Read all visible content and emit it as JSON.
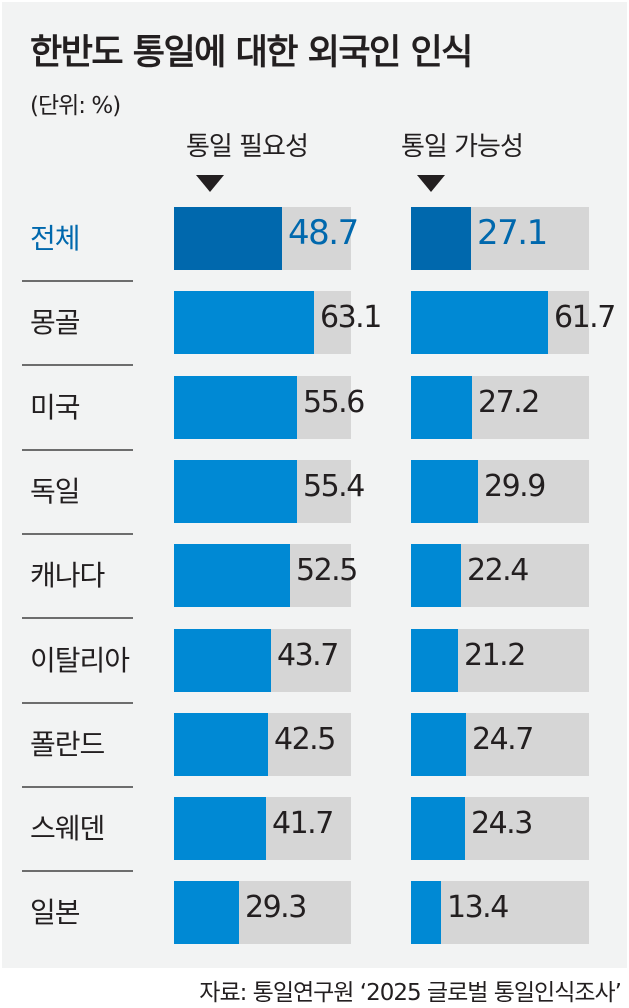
{
  "title": "한반도 통일에 대한 외국인 인식",
  "unit": "(단위: %)",
  "columns": [
    "통일 필요성",
    "통일 가능성"
  ],
  "source": "자료: 통일연구원 ‘2025 글로벌 통일인식조사’",
  "colors": {
    "highlight": "#0068ad",
    "bar": "#0089d4",
    "track": "#d6d6d6",
    "background": "#f2f3f3"
  },
  "rows": [
    {
      "label": "전체",
      "need": "48.7",
      "possible": "27.1"
    },
    {
      "label": "몽골",
      "need": "63.1",
      "possible": "61.7"
    },
    {
      "label": "미국",
      "need": "55.6",
      "possible": "27.2"
    },
    {
      "label": "독일",
      "need": "55.4",
      "possible": "29.9"
    },
    {
      "label": "캐나다",
      "need": "52.5",
      "possible": "22.4"
    },
    {
      "label": "이탈리아",
      "need": "43.7",
      "possible": "21.2"
    },
    {
      "label": "폴란드",
      "need": "42.5",
      "possible": "24.7"
    },
    {
      "label": "스웨덴",
      "need": "41.7",
      "possible": "24.3"
    },
    {
      "label": "일본",
      "need": "29.3",
      "possible": "13.4"
    }
  ],
  "chart_data": {
    "type": "bar",
    "orientation": "horizontal",
    "title": "한반도 통일에 대한 외국인 인식",
    "subtitle": "(단위: %)",
    "categories": [
      "전체",
      "몽골",
      "미국",
      "독일",
      "캐나다",
      "이탈리아",
      "폴란드",
      "스웨덴",
      "일본"
    ],
    "series": [
      {
        "name": "통일 필요성",
        "values": [
          48.7,
          63.1,
          55.6,
          55.4,
          52.5,
          43.7,
          42.5,
          41.7,
          29.3
        ]
      },
      {
        "name": "통일 가능성",
        "values": [
          27.1,
          61.7,
          27.2,
          29.9,
          22.4,
          21.2,
          24.7,
          24.3,
          13.4
        ]
      }
    ],
    "xlim": [
      0,
      100
    ],
    "grid": false,
    "legend": "column headers above bars",
    "annotations": [
      "자료: 통일연구원 ‘2025 글로벌 통일인식조사’"
    ]
  }
}
